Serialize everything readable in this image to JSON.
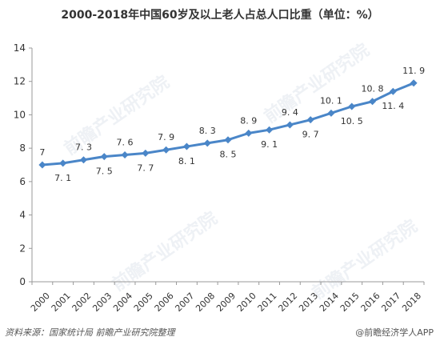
{
  "title": "2000-2018年中国60岁及以上老人占总人口比重（单位：%）",
  "footer": {
    "source": "资料来源：国家统计局  前瞻产业研究院整理",
    "brand": "@前瞻经济学人APP"
  },
  "watermark": "前瞻产业研究院",
  "colors": {
    "line": "#4a86c8",
    "axis": "#999999",
    "text": "#333333"
  },
  "chart_data": {
    "type": "line",
    "title": "2000-2018年中国60岁及以上老人占总人口比重（单位：%）",
    "xlabel": "",
    "ylabel": "",
    "categories": [
      "2000",
      "2001",
      "2002",
      "2003",
      "2004",
      "2005",
      "2006",
      "2007",
      "2008",
      "2009",
      "2010",
      "2011",
      "2012",
      "2013",
      "2014",
      "2015",
      "2016",
      "2017",
      "2018"
    ],
    "values": [
      7,
      7.1,
      7.3,
      7.5,
      7.6,
      7.7,
      7.9,
      8.1,
      8.3,
      8.5,
      8.9,
      9.1,
      9.4,
      9.7,
      10.1,
      10.5,
      10.8,
      11.4,
      11.9
    ],
    "labels": [
      "7",
      "7. 1",
      "7. 3",
      "7. 5",
      "7. 6",
      "7. 7",
      "7. 9",
      "8. 1",
      "8. 3",
      "8. 5",
      "8. 9",
      "9. 1",
      "9. 4",
      "9. 7",
      "10. 1",
      "10. 5",
      "10. 8",
      "11. 4",
      "11. 9"
    ],
    "ylim": [
      0,
      14
    ],
    "yticks": [
      "0",
      "2",
      "4",
      "6",
      "8",
      "10",
      "12",
      "14"
    ],
    "grid": false,
    "legend": "none",
    "marker": "diamond"
  }
}
